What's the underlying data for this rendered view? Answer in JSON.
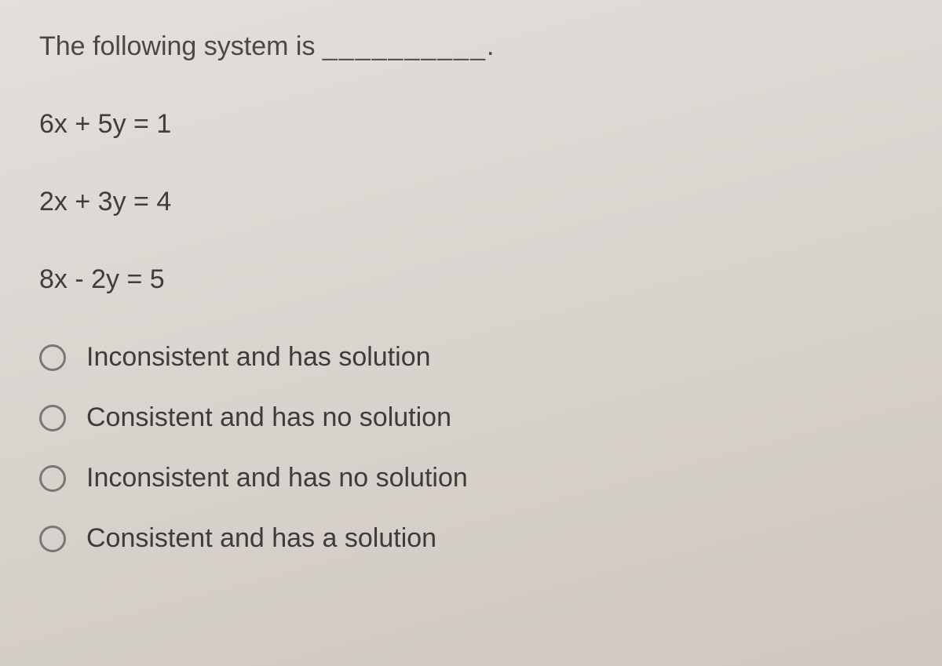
{
  "question": {
    "prompt_prefix": "The following system is ",
    "blank": "__________",
    "prompt_suffix": "."
  },
  "equations": [
    "6x + 5y = 1",
    "2x + 3y = 4",
    "8x - 2y = 5"
  ],
  "options": [
    {
      "label": "Inconsistent and has solution",
      "selected": false
    },
    {
      "label": "Consistent and has no solution",
      "selected": false
    },
    {
      "label": "Inconsistent and has no solution",
      "selected": false
    },
    {
      "label": "Consistent and has a solution",
      "selected": false
    }
  ],
  "style": {
    "background_gradient": [
      "#e3dfdb",
      "#cfc8c1"
    ],
    "text_color": "#3a3a3a",
    "radio_border_color": "#7a7673",
    "font_size_pt": 26
  }
}
